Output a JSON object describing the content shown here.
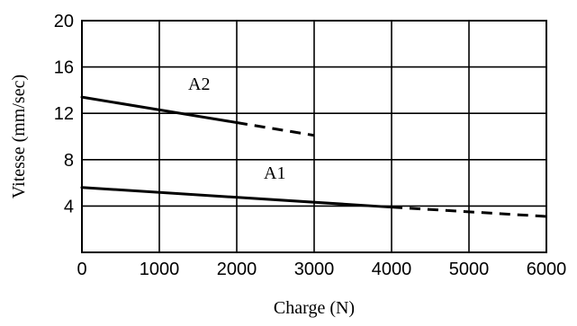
{
  "chart_data": {
    "type": "line",
    "title": "",
    "xlabel": "Charge (N)",
    "ylabel": "Vitesse (mm/sec)",
    "xlim": [
      0,
      6000
    ],
    "ylim": [
      0,
      20
    ],
    "xticks": [
      0,
      1000,
      2000,
      3000,
      4000,
      5000,
      6000
    ],
    "yticks": [
      4,
      8,
      12,
      16,
      20
    ],
    "xtick_labels": [
      "0",
      "1000",
      "2000",
      "3000",
      "4000",
      "5000",
      "6000"
    ],
    "ytick_labels": [
      "4",
      "8",
      "12",
      "16",
      "20"
    ],
    "grid": true,
    "series": [
      {
        "name": "A2",
        "solid": [
          [
            0,
            13.4
          ],
          [
            2000,
            11.2
          ]
        ],
        "dashed": [
          [
            2000,
            11.2
          ],
          [
            3000,
            10.1
          ]
        ]
      },
      {
        "name": "A1",
        "solid": [
          [
            0,
            5.6
          ],
          [
            4000,
            3.9
          ]
        ],
        "dashed": [
          [
            4000,
            3.9
          ],
          [
            6000,
            3.1
          ]
        ]
      }
    ]
  }
}
